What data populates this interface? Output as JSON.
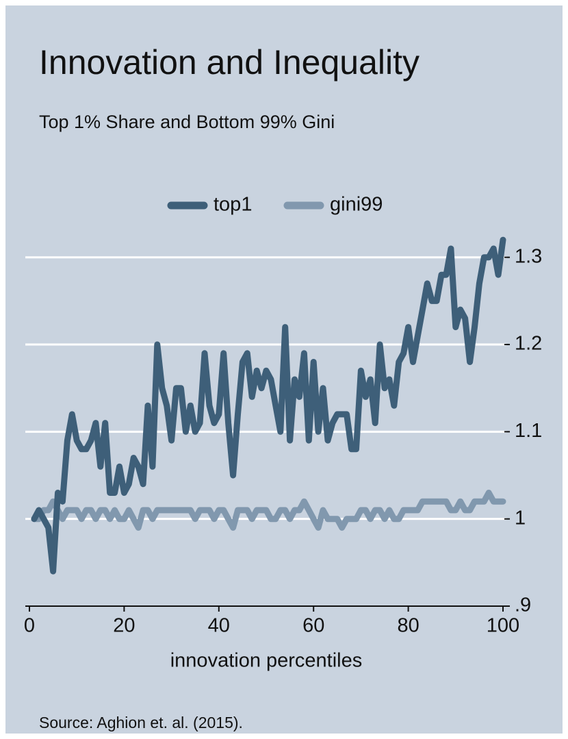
{
  "chart_data": {
    "type": "line",
    "title": "Innovation and Inequality",
    "subtitle": "Top 1% Share and Bottom 99% Gini",
    "x_label": "innovation percentiles",
    "note": "Source: Aghion et. al. (2015).",
    "x": [
      1,
      2,
      3,
      4,
      5,
      6,
      7,
      8,
      9,
      10,
      11,
      12,
      13,
      14,
      15,
      16,
      17,
      18,
      19,
      20,
      21,
      22,
      23,
      24,
      25,
      26,
      27,
      28,
      29,
      30,
      31,
      32,
      33,
      34,
      35,
      36,
      37,
      38,
      39,
      40,
      41,
      42,
      43,
      44,
      45,
      46,
      47,
      48,
      49,
      50,
      51,
      52,
      53,
      54,
      55,
      56,
      57,
      58,
      59,
      60,
      61,
      62,
      63,
      64,
      65,
      66,
      67,
      68,
      69,
      70,
      71,
      72,
      73,
      74,
      75,
      76,
      77,
      78,
      79,
      80,
      81,
      82,
      83,
      84,
      85,
      86,
      87,
      88,
      89,
      90,
      91,
      92,
      93,
      94,
      95,
      96,
      97,
      98,
      99,
      100
    ],
    "series": [
      {
        "name": "top1",
        "color": "#3e5f79",
        "values": [
          1.0,
          1.01,
          1.0,
          0.99,
          0.94,
          1.03,
          1.02,
          1.09,
          1.12,
          1.09,
          1.08,
          1.08,
          1.09,
          1.11,
          1.06,
          1.11,
          1.03,
          1.03,
          1.06,
          1.03,
          1.04,
          1.07,
          1.06,
          1.04,
          1.13,
          1.06,
          1.2,
          1.15,
          1.13,
          1.09,
          1.15,
          1.15,
          1.1,
          1.13,
          1.1,
          1.11,
          1.19,
          1.13,
          1.11,
          1.12,
          1.19,
          1.11,
          1.05,
          1.12,
          1.18,
          1.19,
          1.14,
          1.17,
          1.15,
          1.17,
          1.16,
          1.13,
          1.1,
          1.22,
          1.09,
          1.16,
          1.14,
          1.19,
          1.09,
          1.18,
          1.1,
          1.15,
          1.09,
          1.11,
          1.12,
          1.12,
          1.12,
          1.08,
          1.08,
          1.17,
          1.14,
          1.16,
          1.11,
          1.2,
          1.15,
          1.16,
          1.13,
          1.18,
          1.19,
          1.22,
          1.18,
          1.21,
          1.24,
          1.27,
          1.25,
          1.25,
          1.28,
          1.28,
          1.31,
          1.22,
          1.24,
          1.23,
          1.18,
          1.22,
          1.27,
          1.3,
          1.3,
          1.31,
          1.28,
          1.32
        ]
      },
      {
        "name": "gini99",
        "color": "#8198ae",
        "values": [
          1.0,
          1.0,
          1.01,
          1.01,
          1.02,
          1.01,
          1.0,
          1.01,
          1.01,
          1.01,
          1.0,
          1.01,
          1.01,
          1.0,
          1.01,
          1.01,
          1.0,
          1.01,
          1.0,
          1.0,
          1.01,
          1.0,
          0.99,
          1.01,
          1.01,
          1.0,
          1.01,
          1.01,
          1.01,
          1.01,
          1.01,
          1.01,
          1.01,
          1.01,
          1.0,
          1.01,
          1.01,
          1.01,
          1.0,
          1.01,
          1.01,
          1.0,
          0.99,
          1.01,
          1.01,
          1.01,
          1.0,
          1.01,
          1.01,
          1.01,
          1.0,
          1.0,
          1.01,
          1.01,
          1.0,
          1.01,
          1.01,
          1.02,
          1.01,
          1.0,
          0.99,
          1.01,
          1.0,
          1.0,
          1.0,
          0.99,
          1.0,
          1.0,
          1.0,
          1.01,
          1.01,
          1.0,
          1.01,
          1.01,
          1.0,
          1.01,
          1.0,
          1.0,
          1.01,
          1.01,
          1.01,
          1.01,
          1.02,
          1.02,
          1.02,
          1.02,
          1.02,
          1.02,
          1.01,
          1.01,
          1.02,
          1.01,
          1.01,
          1.02,
          1.02,
          1.02,
          1.03,
          1.02,
          1.02,
          1.02
        ]
      }
    ],
    "xlim": [
      0,
      100
    ],
    "xticks": [
      0,
      20,
      40,
      60,
      80,
      100
    ],
    "ylim": [
      0.9,
      1.33
    ],
    "yticks": [
      {
        "value": 0.9,
        "label": ".9"
      },
      1,
      1.1,
      1.2,
      1.3
    ],
    "grid": true,
    "legend": "top"
  }
}
